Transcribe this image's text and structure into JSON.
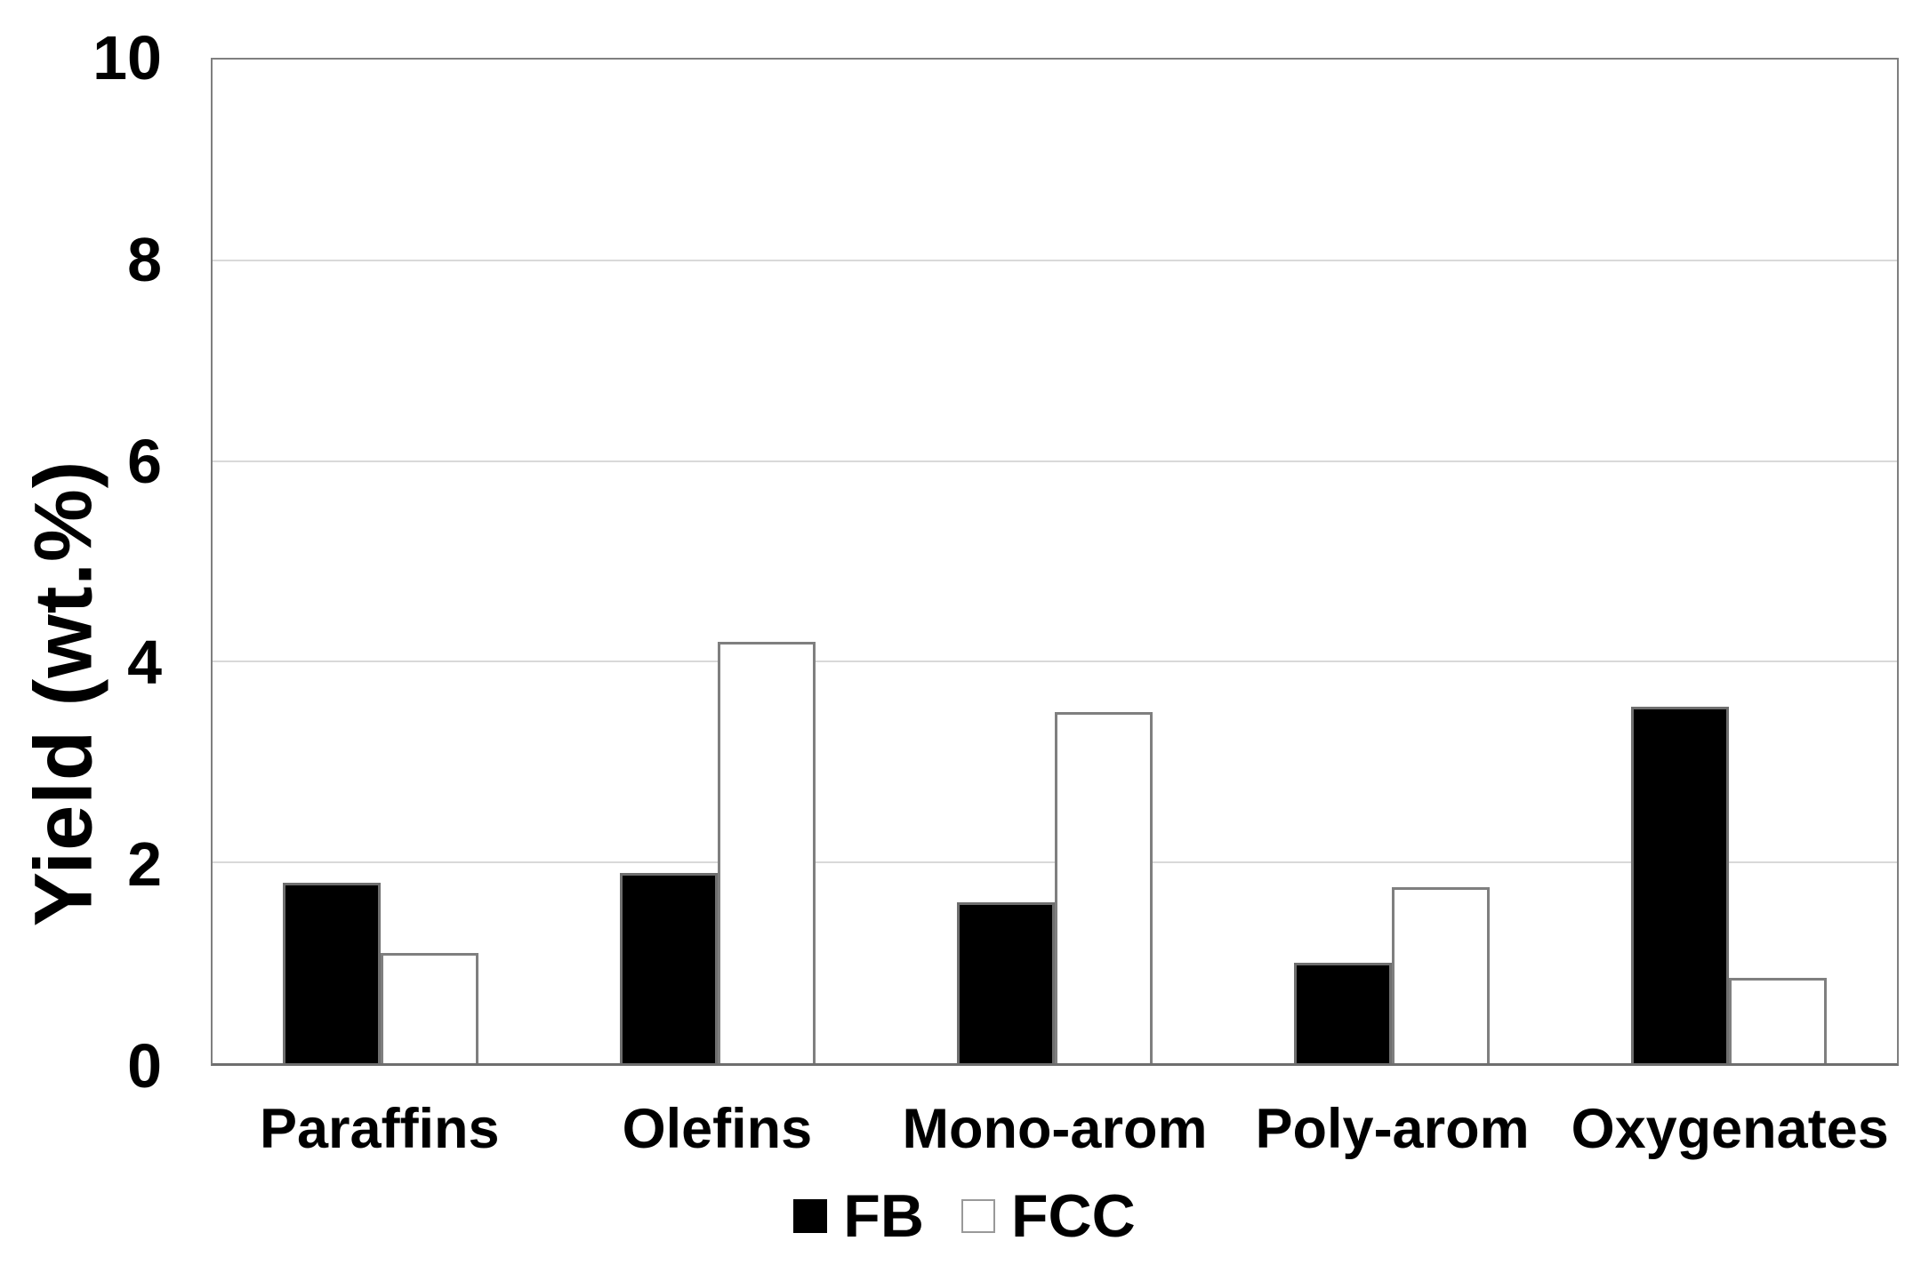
{
  "chart_data": {
    "type": "bar",
    "title": "",
    "xlabel": "",
    "ylabel": "Yield (wt.%)",
    "ylim": [
      0,
      10
    ],
    "yticks": [
      0,
      2,
      4,
      6,
      8,
      10
    ],
    "grid": "horizontal",
    "legend_position": "bottom-center",
    "categories": [
      "Paraffins",
      "Olefins",
      "Mono-arom",
      "Poly-arom",
      "Oxygenates"
    ],
    "series": [
      {
        "name": "FB",
        "fill": "#000000",
        "border": "#6f6f6f",
        "values": [
          1.8,
          1.9,
          1.6,
          1.0,
          3.55
        ]
      },
      {
        "name": "FCC",
        "fill": "#ffffff",
        "border": "#7f7f7f",
        "values": [
          1.1,
          4.2,
          3.5,
          1.75,
          0.85
        ]
      }
    ]
  },
  "styles": {
    "axis_color": "#7f7f7f",
    "gridline_color": "#d9d9d9",
    "text_color": "#000000",
    "background": "#ffffff"
  }
}
